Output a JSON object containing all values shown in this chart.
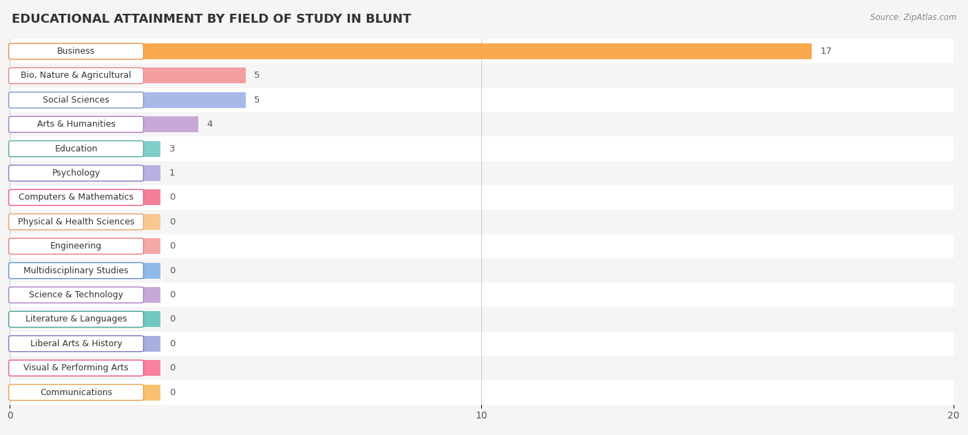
{
  "title": "EDUCATIONAL ATTAINMENT BY FIELD OF STUDY IN BLUNT",
  "source": "Source: ZipAtlas.com",
  "categories": [
    "Business",
    "Bio, Nature & Agricultural",
    "Social Sciences",
    "Arts & Humanities",
    "Education",
    "Psychology",
    "Computers & Mathematics",
    "Physical & Health Sciences",
    "Engineering",
    "Multidisciplinary Studies",
    "Science & Technology",
    "Literature & Languages",
    "Liberal Arts & History",
    "Visual & Performing Arts",
    "Communications"
  ],
  "values": [
    17,
    5,
    5,
    4,
    3,
    1,
    0,
    0,
    0,
    0,
    0,
    0,
    0,
    0,
    0
  ],
  "bar_colors": [
    "#F9A84D",
    "#F4A0A0",
    "#A8B8E8",
    "#C9A8D8",
    "#80CEC8",
    "#B8B0E0",
    "#F48098",
    "#F8C890",
    "#F4A8A8",
    "#90B8E8",
    "#C8A8D8",
    "#70C8C0",
    "#A8B0E0",
    "#F880A0",
    "#F8C070"
  ],
  "label_colors": [
    "#E8903A",
    "#E88080",
    "#7898C8",
    "#A878C0",
    "#50A8A0",
    "#8878C0",
    "#E85878",
    "#E8A060",
    "#E87878",
    "#6090C8",
    "#A878C0",
    "#40A098",
    "#7878C0",
    "#E85880",
    "#E8A040"
  ],
  "xlim": [
    0,
    20
  ],
  "xticks": [
    0,
    10,
    20
  ],
  "bg_color": "#f5f5f5",
  "row_colors": [
    "#ffffff",
    "#f5f5f5"
  ],
  "title_fontsize": 13,
  "label_fontsize": 9.5,
  "min_bar_width": 3.2
}
